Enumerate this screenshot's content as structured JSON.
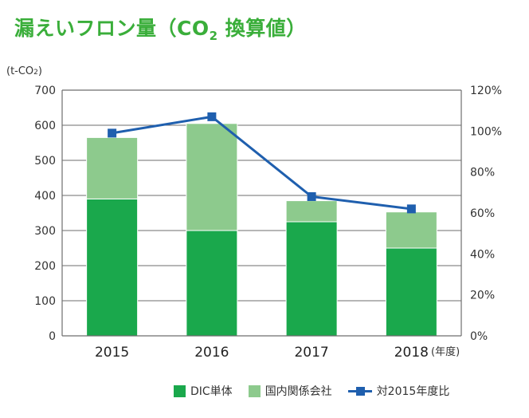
{
  "title": {
    "main": "漏えいフロン量（CO",
    "sub": "2",
    "tail": " 換算値）"
  },
  "unit": {
    "main": "(t-CO",
    "sub": "2",
    "tail": ")"
  },
  "colors": {
    "dic": "#1aa84c",
    "domestic": "#8dca8d",
    "ratio": "#1f5fae",
    "grid": "#6e6e6e"
  },
  "chart_data": {
    "type": "bar",
    "stacked": true,
    "categories": [
      "2015",
      "2016",
      "2017",
      "2018"
    ],
    "series": [
      {
        "name": "DIC単体",
        "type": "bar",
        "axis": "left",
        "values": [
          390,
          300,
          325,
          250
        ]
      },
      {
        "name": "国内関係会社",
        "type": "bar",
        "axis": "left",
        "values": [
          175,
          305,
          60,
          103
        ]
      },
      {
        "name": "対2015年度比",
        "type": "line",
        "axis": "right",
        "values": [
          99,
          107,
          68,
          62
        ]
      }
    ],
    "ylim": [
      0,
      700
    ],
    "yticks": [
      "0",
      "100",
      "200",
      "300",
      "400",
      "500",
      "600",
      "700"
    ],
    "y2lim": [
      0,
      120
    ],
    "y2ticks": [
      "0%",
      "20%",
      "40%",
      "60%",
      "80%",
      "100%",
      "120%"
    ],
    "xunit": "(年度)",
    "grid": true,
    "legend_position": "bottom"
  }
}
